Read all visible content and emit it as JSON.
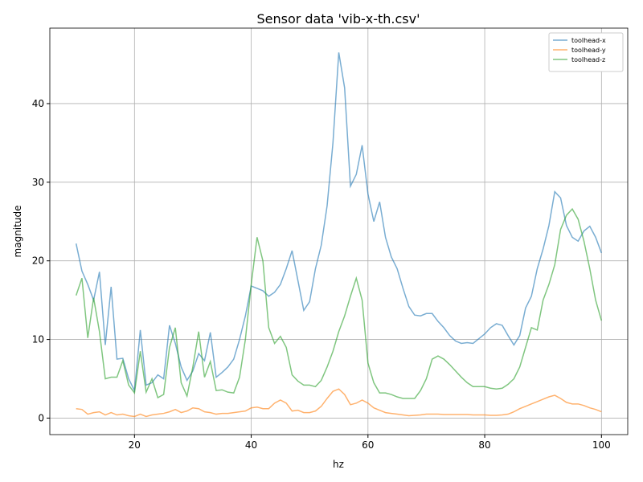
{
  "chart_data": {
    "type": "line",
    "title": "Sensor data 'vib-x-th.csv'",
    "x_label": "hz",
    "y_label": "magnitude",
    "x": [
      10,
      11,
      12,
      13,
      14,
      15,
      16,
      17,
      18,
      19,
      20,
      21,
      22,
      23,
      24,
      25,
      26,
      27,
      28,
      29,
      30,
      31,
      32,
      33,
      34,
      35,
      36,
      37,
      38,
      39,
      40,
      41,
      42,
      43,
      44,
      45,
      46,
      47,
      48,
      49,
      50,
      51,
      52,
      53,
      54,
      55,
      56,
      57,
      58,
      59,
      60,
      61,
      62,
      63,
      64,
      65,
      66,
      67,
      68,
      69,
      70,
      71,
      72,
      73,
      74,
      75,
      76,
      77,
      78,
      79,
      80,
      81,
      82,
      83,
      84,
      85,
      86,
      87,
      88,
      89,
      90,
      91,
      92,
      93,
      94,
      95,
      96,
      97,
      98,
      99,
      100
    ],
    "series": [
      {
        "name": "toolhead-x",
        "color": "#1f77b4",
        "values": [
          22.2,
          18.7,
          17,
          15,
          18.6,
          9.3,
          16.7,
          7.5,
          7.6,
          5,
          3.5,
          11.2,
          4.2,
          4.5,
          5.5,
          5,
          11.8,
          9.5,
          6.5,
          4.8,
          6,
          8.2,
          7.3,
          10.9,
          5.2,
          5.8,
          6.5,
          7.5,
          10,
          13,
          16.8,
          16.5,
          16.2,
          15.5,
          16,
          17,
          19,
          21.3,
          17.5,
          13.7,
          14.8,
          19,
          22,
          27,
          35,
          46.5,
          42,
          29.5,
          31,
          34.7,
          28.5,
          25,
          27.5,
          23,
          20.5,
          19,
          16.5,
          14.2,
          13.1,
          13,
          13.3,
          13.3,
          12.3,
          11.5,
          10.5,
          9.8,
          9.5,
          9.6,
          9.5,
          10.1,
          10.7,
          11.5,
          12,
          11.8,
          10.5,
          9.3,
          10.5,
          14,
          15.5,
          19,
          21.5,
          24.5,
          28.8,
          28,
          24.5,
          23,
          22.5,
          23.8,
          24.4,
          23,
          21
        ]
      },
      {
        "name": "toolhead-y",
        "color": "#ff7f0e",
        "values": [
          1.2,
          1.1,
          0.5,
          0.7,
          0.8,
          0.4,
          0.7,
          0.4,
          0.5,
          0.3,
          0.2,
          0.5,
          0.2,
          0.4,
          0.5,
          0.6,
          0.8,
          1.1,
          0.7,
          0.9,
          1.3,
          1.2,
          0.8,
          0.7,
          0.5,
          0.6,
          0.6,
          0.7,
          0.8,
          0.9,
          1.3,
          1.4,
          1.2,
          1.2,
          1.9,
          2.3,
          1.9,
          0.9,
          1.0,
          0.7,
          0.7,
          0.9,
          1.5,
          2.5,
          3.4,
          3.7,
          3.0,
          1.7,
          1.9,
          2.3,
          1.9,
          1.3,
          1.0,
          0.7,
          0.6,
          0.5,
          0.4,
          0.3,
          0.35,
          0.4,
          0.5,
          0.5,
          0.5,
          0.45,
          0.45,
          0.45,
          0.45,
          0.45,
          0.4,
          0.4,
          0.4,
          0.35,
          0.35,
          0.4,
          0.5,
          0.8,
          1.2,
          1.5,
          1.8,
          2.1,
          2.4,
          2.7,
          2.9,
          2.5,
          2.0,
          1.8,
          1.8,
          1.6,
          1.3,
          1.1,
          0.8
        ]
      },
      {
        "name": "toolhead-z",
        "color": "#2ca02c",
        "values": [
          15.6,
          17.8,
          10.2,
          15.3,
          11,
          5,
          5.2,
          5.2,
          7.3,
          4.2,
          3.2,
          8.5,
          3.3,
          5,
          2.6,
          3,
          9,
          11.5,
          4.5,
          2.8,
          6.5,
          11,
          5.2,
          7.2,
          3.5,
          3.6,
          3.3,
          3.2,
          5.2,
          10,
          17,
          23,
          20,
          11.5,
          9.5,
          10.4,
          9,
          5.5,
          4.7,
          4.2,
          4.2,
          4.0,
          4.8,
          6.5,
          8.5,
          11,
          13,
          15.5,
          17.8,
          15,
          7,
          4.5,
          3.2,
          3.2,
          3.0,
          2.7,
          2.5,
          2.5,
          2.5,
          3.5,
          5,
          7.5,
          7.9,
          7.5,
          6.8,
          6,
          5.2,
          4.5,
          4,
          4,
          4,
          3.8,
          3.7,
          3.8,
          4.3,
          5,
          6.5,
          9,
          11.5,
          11.2,
          15,
          17,
          19.5,
          24,
          25.8,
          26.6,
          25.3,
          22.5,
          19,
          15,
          12.4
        ]
      }
    ],
    "xlim": [
      5.5,
      104.5
    ],
    "ylim": [
      -2.1,
      49.6
    ],
    "xticks": [
      20,
      40,
      60,
      80,
      100
    ],
    "yticks": [
      0,
      10,
      20,
      30,
      40
    ],
    "grid": true,
    "legend": "upper right"
  }
}
